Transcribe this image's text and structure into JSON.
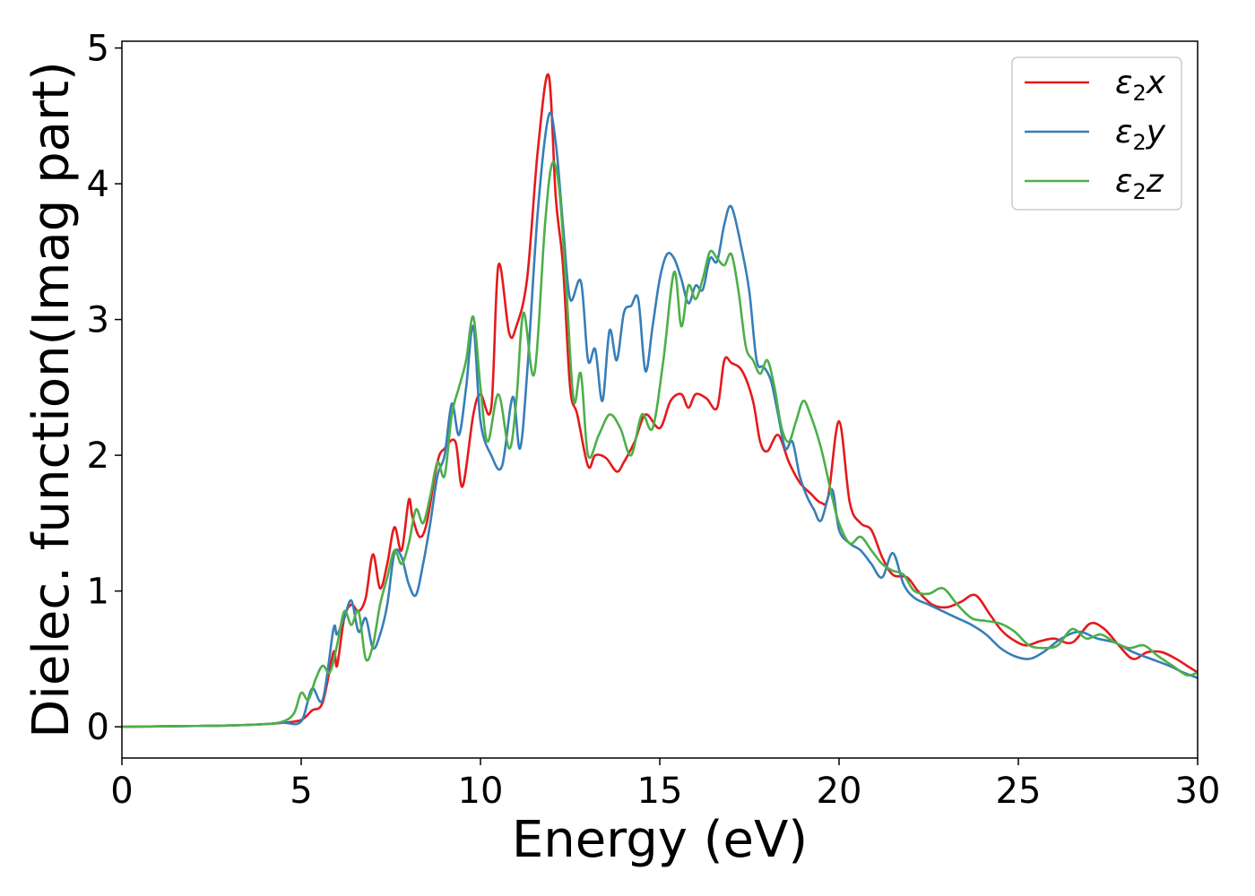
{
  "chart_data": {
    "type": "line",
    "title": "",
    "xlabel": "Energy (eV)",
    "ylabel": "Dielec. function(Imag part)",
    "xlim": [
      0,
      30
    ],
    "ylim": [
      -0.23,
      5.05
    ],
    "x_ticks": [
      0,
      5,
      10,
      15,
      20,
      25,
      30
    ],
    "y_ticks": [
      0,
      1,
      2,
      3,
      4,
      5
    ],
    "grid": false,
    "legend_position": "top-right",
    "series": [
      {
        "name": "ε2x",
        "symbol": "ε",
        "subscript": "2",
        "suffix": "x",
        "color": "#e41a1c",
        "x": [
          0,
          1,
          2,
          3,
          4,
          4.5,
          5,
          5.3,
          5.6,
          5.9,
          6.0,
          6.2,
          6.4,
          6.6,
          6.8,
          7.0,
          7.2,
          7.4,
          7.6,
          7.8,
          8.0,
          8.1,
          8.3,
          8.5,
          8.8,
          9.0,
          9.3,
          9.5,
          9.8,
          10.0,
          10.3,
          10.5,
          10.8,
          11.0,
          11.3,
          11.6,
          11.9,
          12.1,
          12.3,
          12.5,
          12.7,
          13.0,
          13.2,
          13.5,
          13.8,
          14.0,
          14.3,
          14.6,
          15.0,
          15.3,
          15.6,
          15.8,
          16.0,
          16.3,
          16.6,
          16.8,
          17.0,
          17.3,
          17.6,
          17.8,
          18.0,
          18.3,
          18.6,
          18.9,
          19.2,
          19.5,
          19.7,
          20.0,
          20.3,
          20.6,
          20.9,
          21.2,
          21.5,
          21.9,
          22.2,
          22.6,
          23.0,
          23.4,
          23.8,
          24.2,
          24.5,
          24.8,
          25.2,
          25.6,
          26.0,
          26.5,
          27.0,
          27.4,
          27.8,
          28.2,
          28.6,
          29.0,
          29.4,
          29.7,
          30.0
        ],
        "y": [
          0,
          0.003,
          0.006,
          0.01,
          0.02,
          0.03,
          0.05,
          0.12,
          0.18,
          0.55,
          0.45,
          0.8,
          0.9,
          0.85,
          0.95,
          1.27,
          1.02,
          1.2,
          1.47,
          1.3,
          1.67,
          1.55,
          1.4,
          1.5,
          1.95,
          2.05,
          2.1,
          1.77,
          2.3,
          2.45,
          2.35,
          3.4,
          2.9,
          2.95,
          3.3,
          4.25,
          4.8,
          3.9,
          3.4,
          2.5,
          2.3,
          1.92,
          2.0,
          1.98,
          1.88,
          1.95,
          2.1,
          2.3,
          2.2,
          2.4,
          2.45,
          2.35,
          2.45,
          2.42,
          2.35,
          2.7,
          2.68,
          2.62,
          2.4,
          2.1,
          2.03,
          2.15,
          1.95,
          1.8,
          1.72,
          1.65,
          1.7,
          2.25,
          1.65,
          1.5,
          1.45,
          1.25,
          1.12,
          1.1,
          1.0,
          0.9,
          0.88,
          0.92,
          0.97,
          0.83,
          0.72,
          0.65,
          0.6,
          0.63,
          0.65,
          0.62,
          0.76,
          0.72,
          0.6,
          0.5,
          0.55,
          0.55,
          0.5,
          0.45,
          0.4
        ]
      },
      {
        "name": "ε2y",
        "symbol": "ε",
        "subscript": "2",
        "suffix": "y",
        "color": "#377eb8",
        "x": [
          0,
          1,
          2,
          3,
          4,
          4.5,
          5,
          5.3,
          5.6,
          5.9,
          6.0,
          6.2,
          6.4,
          6.6,
          6.8,
          7.0,
          7.2,
          7.4,
          7.6,
          7.8,
          8.0,
          8.2,
          8.4,
          8.6,
          8.8,
          9.0,
          9.2,
          9.4,
          9.6,
          9.8,
          10.0,
          10.3,
          10.6,
          10.9,
          11.1,
          11.3,
          11.6,
          11.9,
          12.1,
          12.3,
          12.5,
          12.8,
          13.0,
          13.2,
          13.4,
          13.6,
          13.8,
          14.0,
          14.2,
          14.4,
          14.6,
          14.8,
          15.0,
          15.2,
          15.4,
          15.6,
          15.8,
          16.0,
          16.2,
          16.4,
          16.6,
          16.8,
          17.0,
          17.3,
          17.5,
          17.7,
          17.9,
          18.1,
          18.3,
          18.5,
          18.7,
          18.9,
          19.1,
          19.3,
          19.5,
          19.8,
          20.0,
          20.3,
          20.6,
          20.9,
          21.2,
          21.5,
          21.8,
          22.1,
          22.5,
          22.9,
          23.3,
          23.7,
          24.1,
          24.5,
          24.9,
          25.3,
          25.7,
          26.2,
          26.7,
          27.2,
          27.7,
          28.2,
          28.7,
          29.2,
          29.6,
          30.0
        ],
        "y": [
          0,
          0.003,
          0.006,
          0.01,
          0.02,
          0.03,
          0.04,
          0.28,
          0.2,
          0.72,
          0.68,
          0.8,
          0.93,
          0.7,
          0.8,
          0.58,
          0.68,
          0.9,
          1.28,
          1.25,
          1.05,
          0.97,
          1.2,
          1.5,
          1.85,
          2.0,
          2.38,
          2.15,
          2.5,
          2.95,
          2.25,
          2.0,
          1.92,
          2.43,
          2.05,
          2.6,
          3.8,
          4.5,
          4.3,
          3.7,
          3.15,
          3.28,
          2.7,
          2.78,
          2.4,
          2.92,
          2.7,
          3.05,
          3.1,
          3.15,
          2.62,
          2.95,
          3.3,
          3.48,
          3.45,
          3.3,
          3.12,
          3.25,
          3.22,
          3.45,
          3.43,
          3.7,
          3.83,
          3.5,
          3.2,
          2.7,
          2.65,
          2.55,
          2.3,
          2.05,
          2.1,
          1.85,
          1.7,
          1.6,
          1.52,
          1.75,
          1.45,
          1.35,
          1.3,
          1.2,
          1.1,
          1.28,
          1.05,
          0.95,
          0.9,
          0.85,
          0.8,
          0.75,
          0.68,
          0.58,
          0.52,
          0.5,
          0.55,
          0.65,
          0.7,
          0.65,
          0.62,
          0.55,
          0.5,
          0.45,
          0.4,
          0.36
        ]
      },
      {
        "name": "ε2z",
        "symbol": "ε",
        "subscript": "2",
        "suffix": "z",
        "color": "#4daf4a",
        "x": [
          0,
          1,
          2,
          3,
          4,
          4.5,
          4.8,
          5.0,
          5.2,
          5.4,
          5.6,
          5.8,
          6.0,
          6.2,
          6.4,
          6.6,
          6.8,
          7.0,
          7.2,
          7.4,
          7.6,
          7.8,
          8.0,
          8.2,
          8.4,
          8.6,
          8.8,
          9.0,
          9.2,
          9.4,
          9.6,
          9.8,
          10.0,
          10.2,
          10.5,
          10.8,
          11.0,
          11.2,
          11.5,
          11.8,
          12.0,
          12.2,
          12.4,
          12.6,
          12.8,
          13.0,
          13.3,
          13.6,
          13.9,
          14.2,
          14.5,
          14.8,
          15.1,
          15.4,
          15.6,
          15.8,
          16.0,
          16.2,
          16.4,
          16.6,
          16.8,
          17.0,
          17.2,
          17.4,
          17.6,
          17.8,
          18.0,
          18.2,
          18.4,
          18.6,
          18.8,
          19.0,
          19.2,
          19.5,
          19.8,
          20.0,
          20.3,
          20.6,
          20.9,
          21.2,
          21.5,
          21.8,
          22.1,
          22.5,
          22.9,
          23.3,
          23.7,
          24.1,
          24.5,
          24.9,
          25.3,
          25.7,
          26.1,
          26.5,
          26.9,
          27.3,
          27.7,
          28.1,
          28.5,
          28.9,
          29.3,
          29.7,
          30.0
        ],
        "y": [
          0,
          0.003,
          0.006,
          0.01,
          0.02,
          0.04,
          0.1,
          0.25,
          0.2,
          0.35,
          0.45,
          0.4,
          0.6,
          0.85,
          0.75,
          0.85,
          0.5,
          0.6,
          0.9,
          1.1,
          1.3,
          1.2,
          1.35,
          1.6,
          1.5,
          1.7,
          1.95,
          1.85,
          2.3,
          2.5,
          2.7,
          3.02,
          2.5,
          2.1,
          2.45,
          2.05,
          2.4,
          3.05,
          2.6,
          3.7,
          4.15,
          3.95,
          3.2,
          2.4,
          2.6,
          2.0,
          2.15,
          2.3,
          2.2,
          2.0,
          2.3,
          2.2,
          2.7,
          3.35,
          2.95,
          3.25,
          3.15,
          3.3,
          3.5,
          3.45,
          3.4,
          3.48,
          3.2,
          2.8,
          2.7,
          2.6,
          2.7,
          2.5,
          2.2,
          2.1,
          2.25,
          2.4,
          2.3,
          2.05,
          1.7,
          1.5,
          1.35,
          1.4,
          1.3,
          1.2,
          1.15,
          1.12,
          1.0,
          0.98,
          1.02,
          0.9,
          0.8,
          0.78,
          0.76,
          0.7,
          0.6,
          0.58,
          0.6,
          0.72,
          0.65,
          0.68,
          0.62,
          0.58,
          0.6,
          0.52,
          0.45,
          0.38,
          0.4
        ]
      }
    ]
  }
}
